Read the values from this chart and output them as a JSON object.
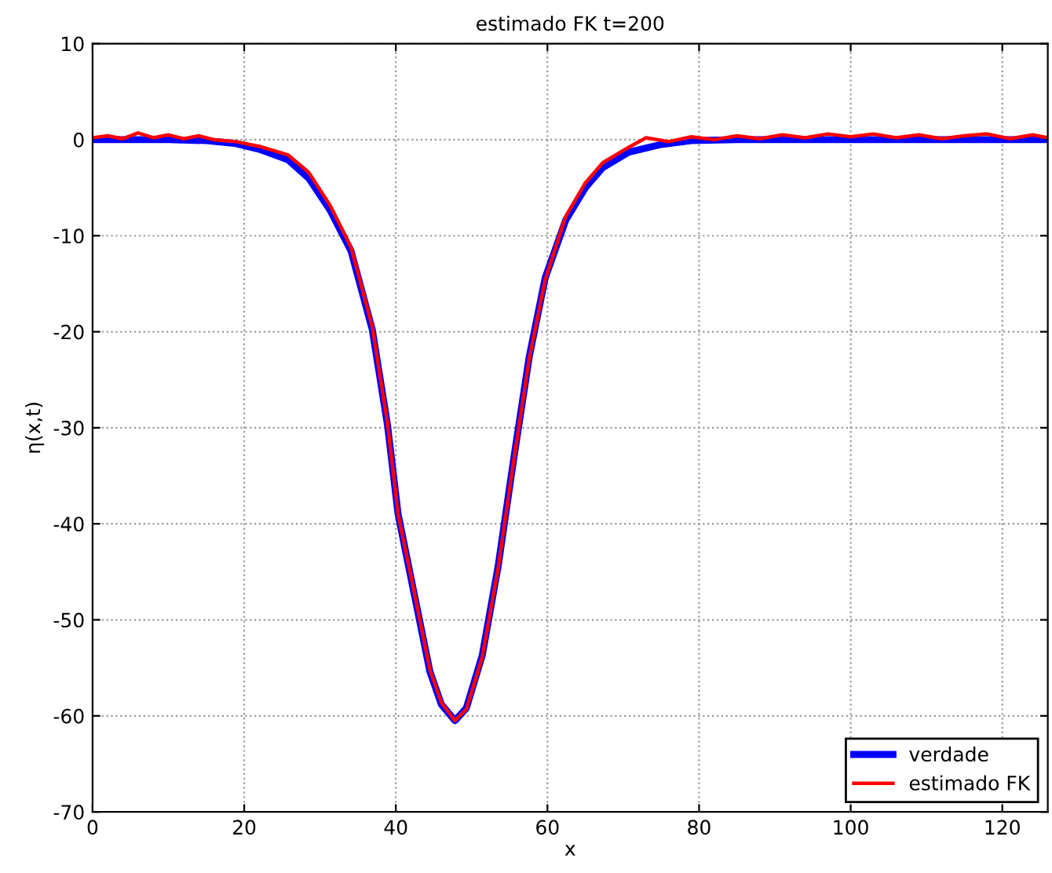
{
  "chart_data": {
    "type": "line",
    "title": "estimado FK t=200",
    "xlabel": "x",
    "ylabel": "η(x,t)",
    "xlim": [
      0,
      126
    ],
    "xticks": [
      0,
      20,
      40,
      60,
      80,
      100,
      120
    ],
    "ylim": [
      -70,
      10
    ],
    "yticks": [
      -70,
      -60,
      -50,
      -40,
      -30,
      -20,
      -10,
      0,
      10
    ],
    "grid": true,
    "legend": "bottom right",
    "line_style": "solid",
    "marker": "none",
    "series": [
      {
        "name": "verdade",
        "color": "#0000ff",
        "x": [
          0,
          5,
          10,
          15,
          18.9,
          22,
          25.8,
          28.5,
          31.3,
          34.1,
          36.9,
          38.9,
          40.3,
          42.4,
          44.5,
          46,
          47.8,
          49.3,
          51.4,
          53.5,
          55.5,
          57.6,
          59.7,
          62.4,
          65,
          67.3,
          70.7,
          75,
          79,
          85,
          95,
          105,
          115,
          126
        ],
        "values": [
          0,
          0,
          0,
          -0.1,
          -0.4,
          -1.0,
          -2.1,
          -4.0,
          -7.3,
          -11.6,
          -19.8,
          -29.7,
          -39.0,
          -47.2,
          -55.4,
          -58.8,
          -60.5,
          -59.2,
          -53.7,
          -44.4,
          -33.5,
          -22.6,
          -14.4,
          -8.4,
          -5.0,
          -2.9,
          -1.3,
          -0.5,
          -0.1,
          0,
          0,
          0,
          0,
          0
        ]
      },
      {
        "name": "estimado FK",
        "color": "#ff0000",
        "x": [
          0,
          2,
          4,
          6,
          8,
          10,
          12,
          14,
          16,
          18.9,
          22,
          25.8,
          28.5,
          31.3,
          34.1,
          36.9,
          38.9,
          40.3,
          42.4,
          44.5,
          46,
          47.8,
          49.3,
          51.4,
          53.5,
          55.5,
          57.6,
          59.7,
          62.4,
          65,
          67.3,
          70.7,
          73,
          76,
          79,
          82,
          85,
          88,
          91,
          94,
          97,
          100,
          103,
          106,
          109,
          112,
          115,
          118,
          121,
          124,
          126
        ],
        "values": [
          0.2,
          0.4,
          0.1,
          0.7,
          0.2,
          0.5,
          0.1,
          0.4,
          0.0,
          -0.2,
          -0.7,
          -1.6,
          -3.4,
          -6.8,
          -11.2,
          -19.5,
          -29.5,
          -39.0,
          -47.0,
          -55.2,
          -58.6,
          -60.5,
          -59.3,
          -53.9,
          -44.6,
          -33.7,
          -22.8,
          -14.6,
          -8.0,
          -4.5,
          -2.4,
          -0.8,
          0.2,
          -0.2,
          0.3,
          0.0,
          0.4,
          0.1,
          0.5,
          0.2,
          0.6,
          0.3,
          0.6,
          0.2,
          0.5,
          0.1,
          0.4,
          0.6,
          0.1,
          0.5,
          0.2
        ]
      }
    ]
  }
}
